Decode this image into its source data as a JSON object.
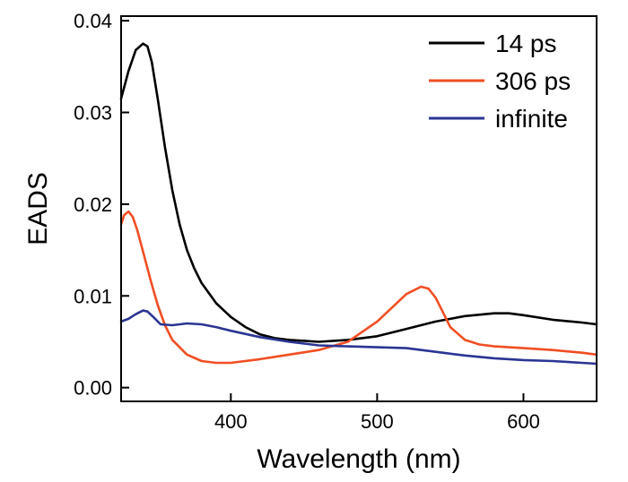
{
  "chart_data": {
    "type": "line",
    "xlabel": "Wavelength (nm)",
    "ylabel": "EADS",
    "xlim": [
      325,
      650
    ],
    "ylim": [
      -0.0015,
      0.0405
    ],
    "x_ticks": [
      400,
      500,
      600
    ],
    "x_tick_labels": [
      "400",
      "500",
      "600"
    ],
    "y_ticks": [
      0.0,
      0.01,
      0.02,
      0.03,
      0.04
    ],
    "y_tick_labels": [
      "0.00",
      "0.01",
      "0.02",
      "0.03",
      "0.04"
    ],
    "legend_position": "top-right",
    "grid": false,
    "series": [
      {
        "name": "14 ps",
        "color": "#000000",
        "x": [
          325,
          330,
          335,
          340,
          343,
          346,
          350,
          355,
          360,
          365,
          370,
          375,
          380,
          390,
          400,
          410,
          420,
          430,
          440,
          450,
          460,
          480,
          500,
          520,
          540,
          560,
          580,
          590,
          600,
          620,
          640,
          650
        ],
        "y": [
          0.0315,
          0.0345,
          0.0368,
          0.0375,
          0.0372,
          0.0355,
          0.0315,
          0.0262,
          0.0215,
          0.0178,
          0.015,
          0.013,
          0.0114,
          0.0092,
          0.0077,
          0.0066,
          0.0058,
          0.0054,
          0.0052,
          0.0051,
          0.005,
          0.0052,
          0.0056,
          0.0064,
          0.0072,
          0.0078,
          0.0081,
          0.0081,
          0.0079,
          0.0074,
          0.0071,
          0.0069
        ]
      },
      {
        "name": "306 ps",
        "color": "#f04e23",
        "x": [
          325,
          327,
          330,
          333,
          336,
          340,
          345,
          350,
          355,
          360,
          370,
          380,
          390,
          400,
          420,
          440,
          460,
          480,
          500,
          510,
          520,
          530,
          535,
          540,
          545,
          550,
          560,
          570,
          580,
          600,
          620,
          640,
          650
        ],
        "y": [
          0.0178,
          0.0188,
          0.0192,
          0.0186,
          0.0172,
          0.0148,
          0.0118,
          0.009,
          0.0068,
          0.0052,
          0.0036,
          0.0029,
          0.0027,
          0.0027,
          0.0031,
          0.0036,
          0.0041,
          0.005,
          0.0072,
          0.0087,
          0.0102,
          0.011,
          0.0108,
          0.0098,
          0.0082,
          0.0066,
          0.0052,
          0.0047,
          0.0045,
          0.0043,
          0.0041,
          0.0038,
          0.0036
        ]
      },
      {
        "name": "infinite",
        "color": "#2b3593",
        "x": [
          325,
          330,
          335,
          340,
          343,
          347,
          352,
          360,
          370,
          380,
          390,
          400,
          420,
          440,
          460,
          480,
          500,
          520,
          540,
          560,
          580,
          600,
          620,
          640,
          650
        ],
        "y": [
          0.0072,
          0.0075,
          0.008,
          0.0084,
          0.0083,
          0.0077,
          0.0069,
          0.0068,
          0.007,
          0.0069,
          0.0066,
          0.0062,
          0.0055,
          0.005,
          0.0046,
          0.0045,
          0.0044,
          0.0043,
          0.0039,
          0.0035,
          0.0032,
          0.003,
          0.0029,
          0.0027,
          0.0026
        ]
      }
    ]
  }
}
